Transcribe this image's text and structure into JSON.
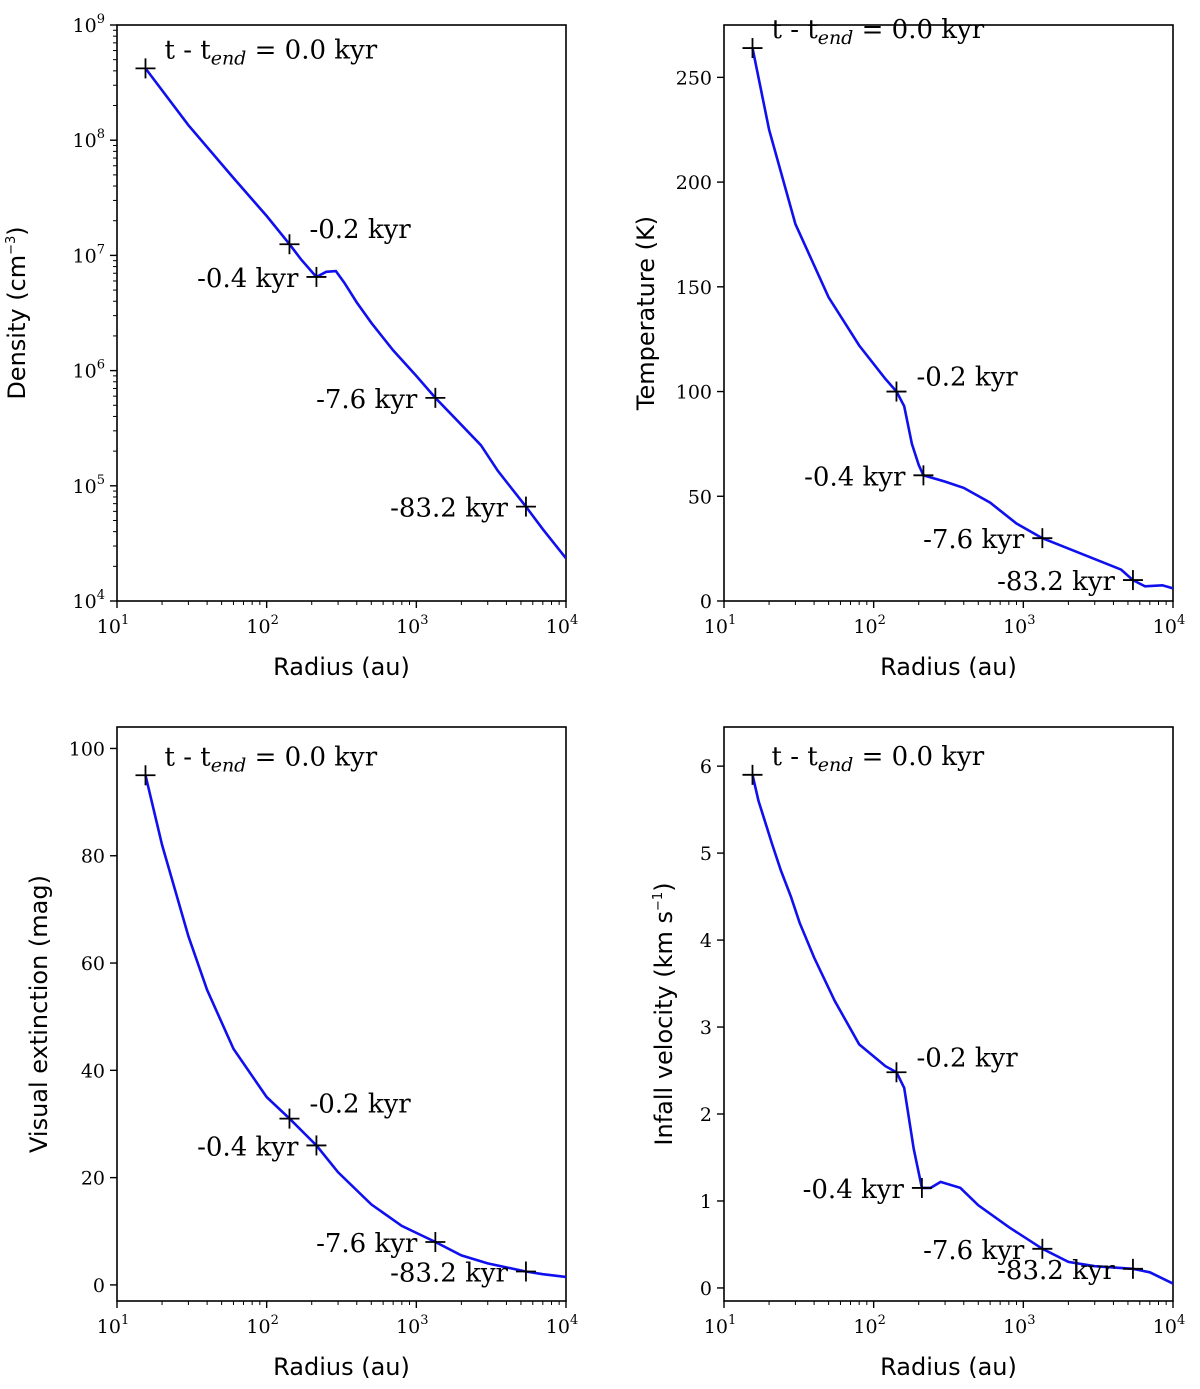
{
  "chart_data": [
    {
      "id": "density",
      "type": "line",
      "xscale": "log",
      "yscale": "log",
      "xlabel": "Radius (au)",
      "ylabel": "Density (cm−3)",
      "ylabel_parts": [
        "Density (cm",
        "−3",
        ")"
      ],
      "xlim": [
        10,
        10000
      ],
      "ylim": [
        10000,
        1000000000
      ],
      "xticks": [
        {
          "value": 10,
          "base": "10",
          "exp": "1"
        },
        {
          "value": 100,
          "base": "10",
          "exp": "2"
        },
        {
          "value": 1000,
          "base": "10",
          "exp": "3"
        },
        {
          "value": 10000,
          "base": "10",
          "exp": "4"
        }
      ],
      "yticks": [
        {
          "value": 10000,
          "base": "10",
          "exp": "4"
        },
        {
          "value": 100000,
          "base": "10",
          "exp": "5"
        },
        {
          "value": 1000000,
          "base": "10",
          "exp": "6"
        },
        {
          "value": 10000000,
          "base": "10",
          "exp": "7"
        },
        {
          "value": 100000000,
          "base": "10",
          "exp": "8"
        },
        {
          "value": 1000000000,
          "base": "10",
          "exp": "9"
        }
      ],
      "line_color": "#1010ee",
      "series": [
        {
          "name": "profile",
          "x": [
            15.5,
            30,
            60,
            100,
            142,
            170,
            215,
            250,
            290,
            330,
            400,
            500,
            700,
            1000,
            1340,
            1800,
            2700,
            3500,
            5400,
            7000,
            10000
          ],
          "y": [
            420000000,
            135000000,
            47000000,
            22000000,
            12500000,
            9200000,
            6500000,
            7200000,
            7300000,
            5800000,
            3900000,
            2600000,
            1500000,
            900000,
            580000,
            390000,
            225000,
            135000,
            66000,
            42000,
            23500
          ]
        }
      ],
      "markers": [
        {
          "x": 15.5,
          "y": 420000000,
          "label": "0.0 kyr",
          "prefix": "t - t",
          "sub": "end",
          "eq": " = ",
          "side": "right"
        },
        {
          "x": 142,
          "y": 12500000,
          "label": "-0.2 kyr",
          "side": "right"
        },
        {
          "x": 215,
          "y": 6500000,
          "label": "-0.4 kyr",
          "side": "left"
        },
        {
          "x": 1340,
          "y": 580000,
          "label": "-7.6 kyr",
          "side": "left"
        },
        {
          "x": 5400,
          "y": 66000,
          "label": "-83.2 kyr",
          "side": "left"
        }
      ]
    },
    {
      "id": "temperature",
      "type": "line",
      "xscale": "log",
      "yscale": "linear",
      "xlabel": "Radius (au)",
      "ylabel": "Temperature (K)",
      "xlim": [
        10,
        10000
      ],
      "ylim": [
        0,
        275
      ],
      "xticks": [
        {
          "value": 10,
          "base": "10",
          "exp": "1"
        },
        {
          "value": 100,
          "base": "10",
          "exp": "2"
        },
        {
          "value": 1000,
          "base": "10",
          "exp": "3"
        },
        {
          "value": 10000,
          "base": "10",
          "exp": "4"
        }
      ],
      "yticks": [
        {
          "value": 0,
          "label": "0"
        },
        {
          "value": 50,
          "label": "50"
        },
        {
          "value": 100,
          "label": "100"
        },
        {
          "value": 150,
          "label": "150"
        },
        {
          "value": 200,
          "label": "200"
        },
        {
          "value": 250,
          "label": "250"
        }
      ],
      "line_color": "#1010ee",
      "series": [
        {
          "name": "profile",
          "x": [
            15.5,
            20,
            30,
            50,
            80,
            120,
            142,
            160,
            180,
            200,
            215,
            300,
            400,
            600,
            900,
            1340,
            2000,
            3000,
            4500,
            5400,
            6500,
            8500,
            10000
          ],
          "y": [
            264,
            225,
            180,
            145,
            122,
            106,
            100,
            93,
            75,
            65,
            60,
            57,
            54,
            47,
            37,
            30,
            25,
            20,
            15,
            10,
            7,
            7.5,
            6
          ]
        }
      ],
      "markers": [
        {
          "x": 15.5,
          "y": 264,
          "label": "0.0 kyr",
          "prefix": "t - t",
          "sub": "end",
          "eq": " = ",
          "side": "right"
        },
        {
          "x": 142,
          "y": 100,
          "label": "-0.2 kyr",
          "side": "right"
        },
        {
          "x": 215,
          "y": 60,
          "label": "-0.4 kyr",
          "side": "left"
        },
        {
          "x": 1340,
          "y": 30,
          "label": "-7.6 kyr",
          "side": "left"
        },
        {
          "x": 5400,
          "y": 10,
          "label": "-83.2 kyr",
          "side": "left"
        }
      ]
    },
    {
      "id": "extinction",
      "type": "line",
      "xscale": "log",
      "yscale": "linear",
      "xlabel": "Radius (au)",
      "ylabel": "Visual extinction (mag)",
      "xlim": [
        10,
        10000
      ],
      "ylim": [
        -3,
        104
      ],
      "xticks": [
        {
          "value": 10,
          "base": "10",
          "exp": "1"
        },
        {
          "value": 100,
          "base": "10",
          "exp": "2"
        },
        {
          "value": 1000,
          "base": "10",
          "exp": "3"
        },
        {
          "value": 10000,
          "base": "10",
          "exp": "4"
        }
      ],
      "yticks": [
        {
          "value": 0,
          "label": "0"
        },
        {
          "value": 20,
          "label": "20"
        },
        {
          "value": 40,
          "label": "40"
        },
        {
          "value": 60,
          "label": "60"
        },
        {
          "value": 80,
          "label": "80"
        },
        {
          "value": 100,
          "label": "100"
        }
      ],
      "line_color": "#1010ee",
      "series": [
        {
          "name": "profile",
          "x": [
            15.5,
            20,
            30,
            40,
            60,
            100,
            142,
            215,
            300,
            500,
            800,
            1340,
            2000,
            3000,
            5400,
            7000,
            10000
          ],
          "y": [
            95,
            82,
            65,
            55,
            44,
            35,
            31,
            26,
            21,
            15,
            11,
            8,
            5.5,
            4,
            2.5,
            2,
            1.5
          ]
        }
      ],
      "markers": [
        {
          "x": 15.5,
          "y": 95,
          "label": "0.0 kyr",
          "prefix": "t - t",
          "sub": "end",
          "eq": " = ",
          "side": "right"
        },
        {
          "x": 142,
          "y": 31,
          "label": "-0.2 kyr",
          "side": "right"
        },
        {
          "x": 215,
          "y": 26,
          "label": "-0.4 kyr",
          "side": "left"
        },
        {
          "x": 1340,
          "y": 8,
          "label": "-7.6 kyr",
          "side": "left"
        },
        {
          "x": 5400,
          "y": 2.5,
          "label": "-83.2 kyr",
          "side": "left"
        }
      ]
    },
    {
      "id": "velocity",
      "type": "line",
      "xscale": "log",
      "yscale": "linear",
      "xlabel": "Radius (au)",
      "ylabel": "Infall velocity (km s−1)",
      "ylabel_parts": [
        "Infall velocity (km s",
        "−1",
        ")"
      ],
      "xlim": [
        10,
        10000
      ],
      "ylim": [
        -0.15,
        6.45
      ],
      "xticks": [
        {
          "value": 10,
          "base": "10",
          "exp": "1"
        },
        {
          "value": 100,
          "base": "10",
          "exp": "2"
        },
        {
          "value": 1000,
          "base": "10",
          "exp": "3"
        },
        {
          "value": 10000,
          "base": "10",
          "exp": "4"
        }
      ],
      "yticks": [
        {
          "value": 0,
          "label": "0"
        },
        {
          "value": 1,
          "label": "1"
        },
        {
          "value": 2,
          "label": "2"
        },
        {
          "value": 3,
          "label": "3"
        },
        {
          "value": 4,
          "label": "4"
        },
        {
          "value": 5,
          "label": "5"
        },
        {
          "value": 6,
          "label": "6"
        }
      ],
      "line_color": "#1010ee",
      "series": [
        {
          "name": "profile",
          "x": [
            15.5,
            17,
            18.5,
            21,
            24,
            28,
            32,
            40,
            55,
            80,
            120,
            142,
            160,
            185,
            210,
            240,
            280,
            380,
            500,
            800,
            1340,
            2000,
            3000,
            5400,
            7000,
            10000
          ],
          "y": [
            5.9,
            5.6,
            5.4,
            5.1,
            4.8,
            4.5,
            4.2,
            3.8,
            3.3,
            2.8,
            2.55,
            2.48,
            2.3,
            1.6,
            1.15,
            1.15,
            1.22,
            1.15,
            0.95,
            0.7,
            0.45,
            0.3,
            0.25,
            0.22,
            0.18,
            0.05
          ]
        }
      ],
      "markers": [
        {
          "x": 15.5,
          "y": 5.9,
          "label": "0.0 kyr",
          "prefix": "t - t",
          "sub": "end",
          "eq": " = ",
          "side": "right"
        },
        {
          "x": 142,
          "y": 2.48,
          "label": "-0.2 kyr",
          "side": "right"
        },
        {
          "x": 210,
          "y": 1.15,
          "label": "-0.4 kyr",
          "side": "left"
        },
        {
          "x": 1340,
          "y": 0.45,
          "label": "-7.6 kyr",
          "side": "left"
        },
        {
          "x": 5400,
          "y": 0.22,
          "label": "-83.2 kyr",
          "side": "left"
        }
      ]
    }
  ]
}
